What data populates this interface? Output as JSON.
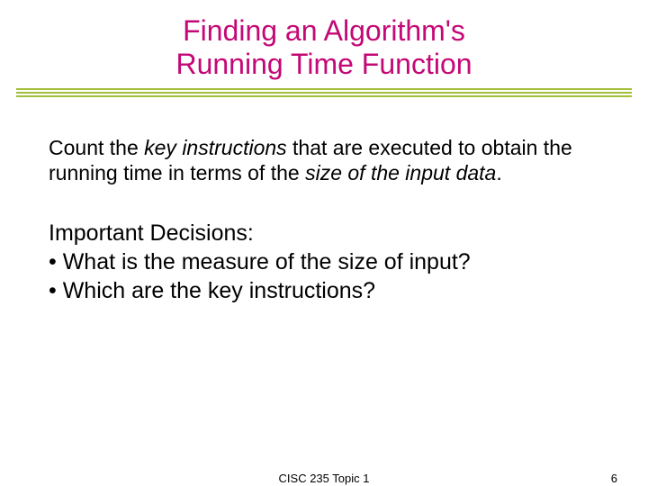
{
  "title_line1": "Finding an Algorithm's",
  "title_line2": "Running Time Function",
  "title_color": "#c40876",
  "underline_color": "#a2c037",
  "para1_pre": "Count the ",
  "para1_key": "key instructions",
  "para1_mid": " that are executed to obtain the running time in terms of the ",
  "para1_size": "size of the input data",
  "para1_end": ".",
  "sec_heading": "Important Decisions:",
  "bullet1": "• What is the measure of the size of input?",
  "bullet2": "• Which are the key instructions?",
  "footer_center": "CISC 235 Topic 1",
  "footer_page": "6"
}
